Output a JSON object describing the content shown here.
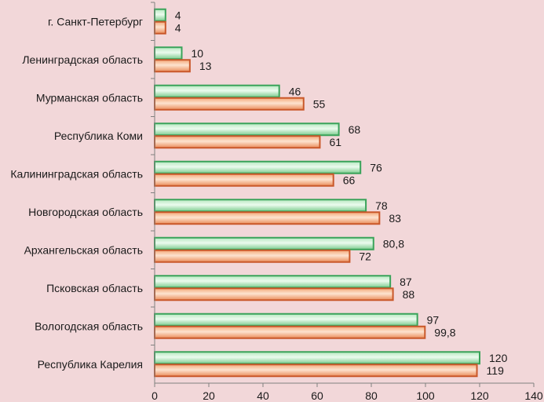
{
  "chart_data": {
    "type": "bar",
    "orientation": "horizontal",
    "categories": [
      "г. Санкт-Петербург",
      "Ленинградская область",
      "Мурманская область",
      "Республика Коми",
      "Калининградская область",
      "Новгородская область",
      "Архангельская область",
      "Псковская область",
      "Вологодская область",
      "Республика Карелия"
    ],
    "series": [
      {
        "name": "series-1",
        "color": "#3aa35a",
        "values": [
          4,
          10,
          46,
          68,
          76,
          78,
          80.8,
          87,
          97,
          120
        ],
        "labels": [
          "4",
          "10",
          "46",
          "68",
          "76",
          "78",
          "80,8",
          "87",
          "97",
          "120"
        ]
      },
      {
        "name": "series-2",
        "color": "#c9582a",
        "values": [
          4,
          13,
          55,
          61,
          66,
          83,
          72,
          88,
          99.8,
          119
        ],
        "labels": [
          "4",
          "13",
          "55",
          "61",
          "66",
          "83",
          "72",
          "88",
          "99,8",
          "119"
        ]
      }
    ],
    "xlim": [
      0,
      140
    ],
    "xticks": [
      0,
      20,
      40,
      60,
      80,
      100,
      120,
      140
    ],
    "title": "",
    "xlabel": "",
    "ylabel": "",
    "grid": false,
    "legend": "none"
  }
}
